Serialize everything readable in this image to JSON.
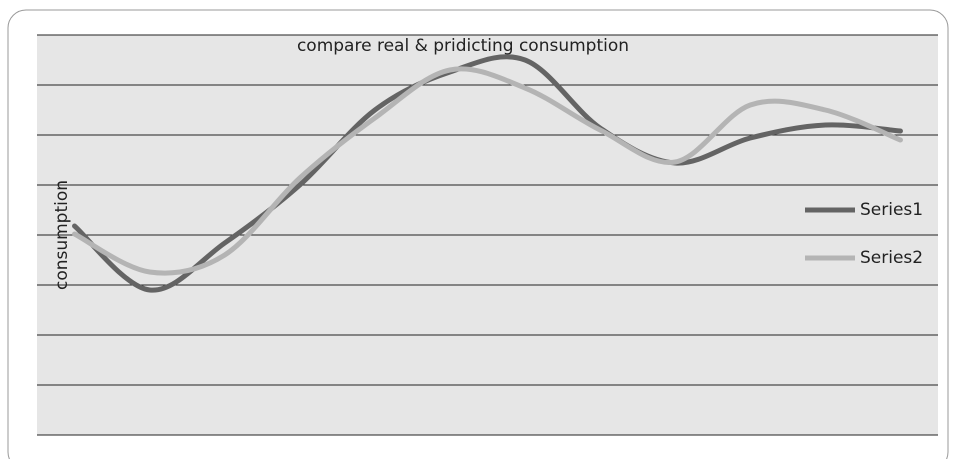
{
  "chart_data": {
    "type": "line",
    "title": "compare real & pridicting consumption",
    "y_label": "consumption",
    "categories": [
      null,
      null,
      null,
      null,
      null,
      null,
      null,
      null,
      null,
      null,
      null,
      null
    ],
    "series": [
      {
        "name": "Series1",
        "color": "#646464",
        "values": [
          4.18,
          2.9,
          3.84,
          5.0,
          6.5,
          7.26,
          7.5,
          6.14,
          5.44,
          5.94,
          6.2,
          6.08
        ]
      },
      {
        "name": "Series2",
        "color": "#b4b4b4",
        "values": [
          4.02,
          3.26,
          3.6,
          5.14,
          6.34,
          7.3,
          6.94,
          6.1,
          5.46,
          6.6,
          6.5,
          5.9
        ]
      }
    ],
    "ylim": [
      0,
      8
    ],
    "yticks": [
      0,
      1,
      2,
      3,
      4,
      5,
      6,
      7,
      8
    ],
    "grid": true,
    "tick_labels": false,
    "smooth": true,
    "legend": "right",
    "plot_background": "#e6e6e6"
  }
}
